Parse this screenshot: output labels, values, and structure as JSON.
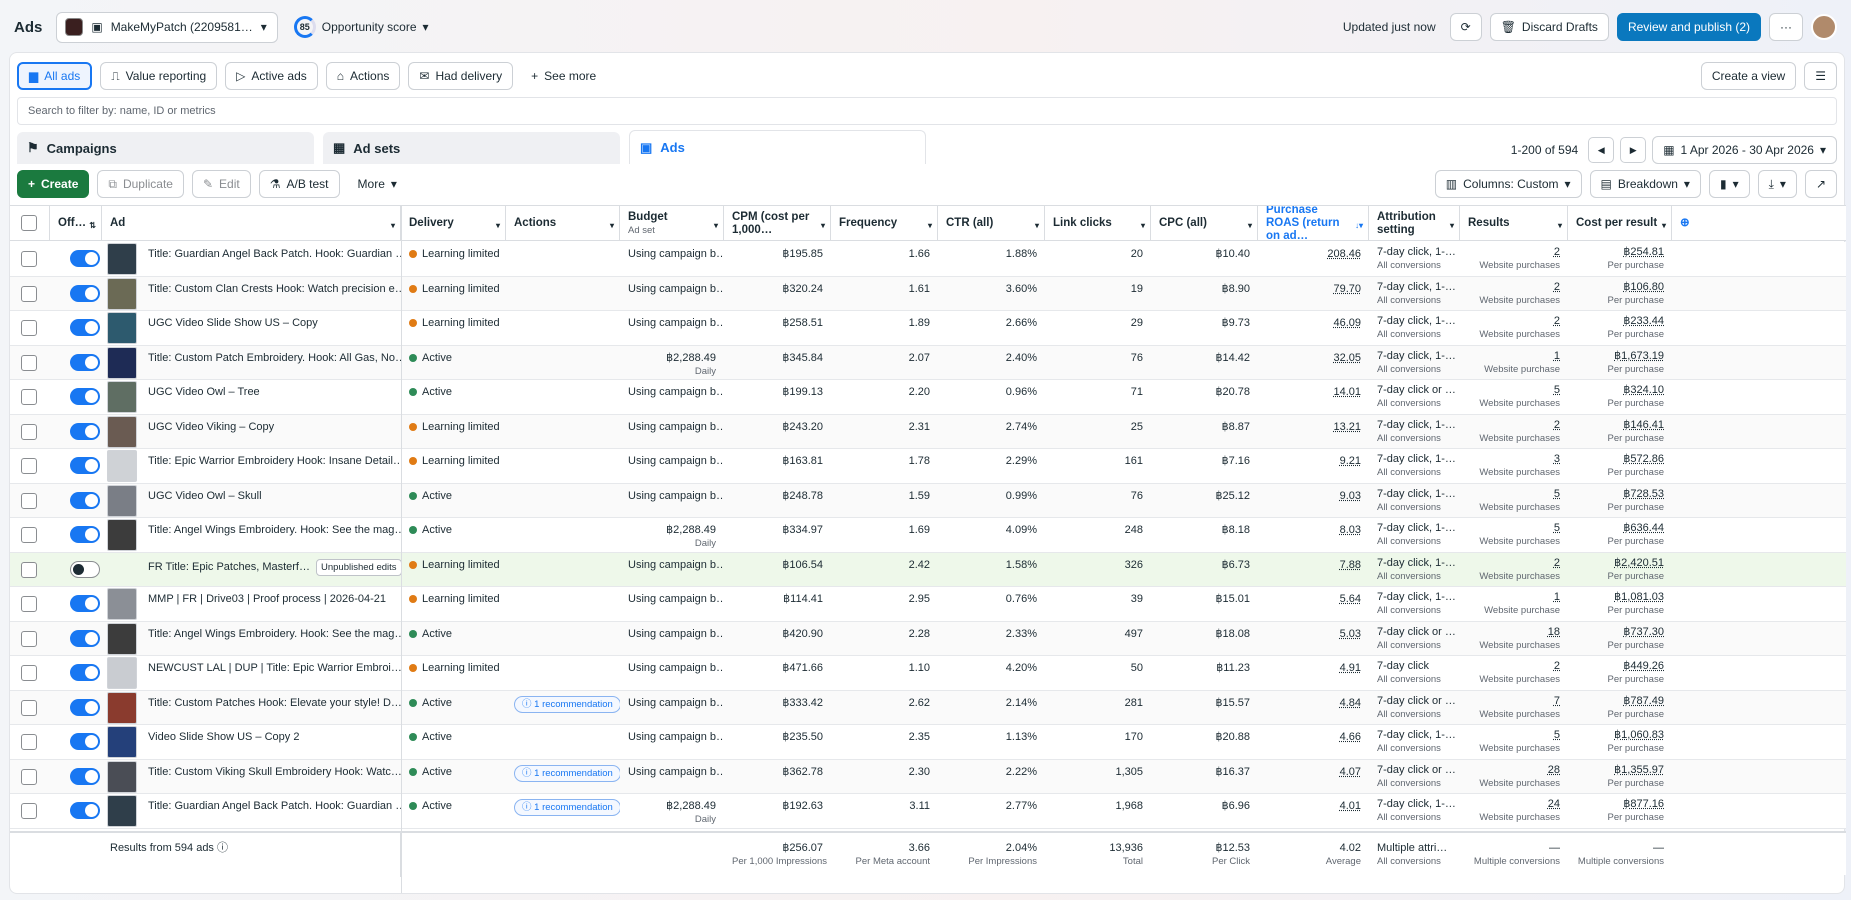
{
  "topbar": {
    "title": "Ads",
    "account": "MakeMyPatch (2209581…",
    "score": "85",
    "opportunity": "Opportunity score",
    "updated": "Updated just now",
    "discard": "Discard Drafts",
    "publish": "Review and publish (2)",
    "more": "···"
  },
  "filters": [
    {
      "label": "All ads",
      "icon": "▆"
    },
    {
      "label": "Value reporting",
      "icon": "⎍"
    },
    {
      "label": "Active ads",
      "icon": "▷"
    },
    {
      "label": "Actions",
      "icon": "⌂"
    },
    {
      "label": "Had delivery",
      "icon": "✉"
    },
    {
      "label": "See more",
      "icon": "+"
    }
  ],
  "create_view": "Create a view",
  "search_placeholder": "Search to filter by: name, ID or metrics",
  "levels": {
    "campaigns": "Campaigns",
    "adsets": "Ad sets",
    "ads": "Ads"
  },
  "pagination": "1-200 of 594",
  "daterange": "1 Apr 2026 - 30 Apr 2026",
  "toolbar": {
    "create": "Create",
    "duplicate": "Duplicate",
    "edit": "Edit",
    "abtest": "A/B test",
    "more": "More",
    "columns": "Columns: Custom",
    "breakdown": "Breakdown"
  },
  "headers": {
    "off": "Off…",
    "ad": "Ad",
    "delivery": "Delivery",
    "actions": "Actions",
    "budget": "Budget",
    "budget_sub": "Ad set",
    "cpm": "CPM (cost per 1,000…",
    "frequency": "Frequency",
    "ctr": "CTR (all)",
    "clicks": "Link clicks",
    "cpc": "CPC (all)",
    "roas": "Purchase ROAS (return on ad…",
    "attribution": "Attribution setting",
    "results": "Results",
    "cpr": "Cost per result"
  },
  "rows": [
    {
      "name": "Title: Guardian Angel Back Patch. Hook: Guardian …",
      "delivery": "Learning limited",
      "status": "learn",
      "rec": "",
      "budget": "Using campaign b…",
      "budget_sub": "",
      "cpm": "฿195.85",
      "freq": "1.66",
      "ctr": "1.88%",
      "clicks": "20",
      "cpc": "฿10.40",
      "roas": "208.46",
      "attr": "7-day click, 1-…",
      "attr_sub": "All conversions",
      "res": "2",
      "res_sub": "Website purchases",
      "cpr": "฿254.81",
      "cpr_sub": "Per purchase",
      "on": true,
      "thumb": "#2f3e4a"
    },
    {
      "name": "Title: Custom Clan Crests Hook: Watch precision e…",
      "delivery": "Learning limited",
      "status": "learn",
      "rec": "",
      "budget": "Using campaign b…",
      "budget_sub": "",
      "cpm": "฿320.24",
      "freq": "1.61",
      "ctr": "3.60%",
      "clicks": "19",
      "cpc": "฿8.90",
      "roas": "79.70",
      "attr": "7-day click, 1-…",
      "attr_sub": "All conversions",
      "res": "2",
      "res_sub": "Website purchases",
      "cpr": "฿106.80",
      "cpr_sub": "Per purchase",
      "on": true,
      "thumb": "#6b6a55"
    },
    {
      "name": "UGC Video Slide Show US – Copy",
      "delivery": "Learning limited",
      "status": "learn",
      "rec": "",
      "budget": "Using campaign b…",
      "budget_sub": "",
      "cpm": "฿258.51",
      "freq": "1.89",
      "ctr": "2.66%",
      "clicks": "29",
      "cpc": "฿9.73",
      "roas": "46.09",
      "attr": "7-day click, 1-…",
      "attr_sub": "All conversions",
      "res": "2",
      "res_sub": "Website purchases",
      "cpr": "฿233.44",
      "cpr_sub": "Per purchase",
      "on": true,
      "thumb": "#2d5a6e"
    },
    {
      "name": "Title: Custom Patch Embroidery. Hook: All Gas, No…",
      "delivery": "Active",
      "status": "act",
      "rec": "",
      "budget": "฿2,288.49",
      "budget_sub": "Daily",
      "cpm": "฿345.84",
      "freq": "2.07",
      "ctr": "2.40%",
      "clicks": "76",
      "cpc": "฿14.42",
      "roas": "32.05",
      "attr": "7-day click, 1-…",
      "attr_sub": "All conversions",
      "res": "1",
      "res_sub": "Website purchase",
      "cpr": "฿1,673.19",
      "cpr_sub": "Per purchase",
      "on": true,
      "thumb": "#1e2b55"
    },
    {
      "name": "UGC Video Owl – Tree",
      "delivery": "Active",
      "status": "act",
      "rec": "",
      "budget": "Using campaign b…",
      "budget_sub": "",
      "cpm": "฿199.13",
      "freq": "2.20",
      "ctr": "0.96%",
      "clicks": "71",
      "cpc": "฿20.78",
      "roas": "14.01",
      "attr": "7-day click or …",
      "attr_sub": "All conversions",
      "res": "5",
      "res_sub": "Website purchases",
      "cpr": "฿324.10",
      "cpr_sub": "Per purchase",
      "on": true,
      "thumb": "#5f6e63"
    },
    {
      "name": "UGC Video Viking – Copy",
      "delivery": "Learning limited",
      "status": "learn",
      "rec": "",
      "budget": "Using campaign b…",
      "budget_sub": "",
      "cpm": "฿243.20",
      "freq": "2.31",
      "ctr": "2.74%",
      "clicks": "25",
      "cpc": "฿8.87",
      "roas": "13.21",
      "attr": "7-day click, 1-…",
      "attr_sub": "All conversions",
      "res": "2",
      "res_sub": "Website purchases",
      "cpr": "฿146.41",
      "cpr_sub": "Per purchase",
      "on": true,
      "thumb": "#6a5b52"
    },
    {
      "name": "Title: Epic Warrior Embroidery Hook: Insane Detail…",
      "delivery": "Learning limited",
      "status": "learn",
      "rec": "",
      "budget": "Using campaign b…",
      "budget_sub": "",
      "cpm": "฿163.81",
      "freq": "1.78",
      "ctr": "2.29%",
      "clicks": "161",
      "cpc": "฿7.16",
      "roas": "9.21",
      "attr": "7-day click, 1-…",
      "attr_sub": "All conversions",
      "res": "3",
      "res_sub": "Website purchases",
      "cpr": "฿572.86",
      "cpr_sub": "Per purchase",
      "on": true,
      "thumb": "#cfd2d6"
    },
    {
      "name": "UGC Video Owl – Skull",
      "delivery": "Active",
      "status": "act",
      "rec": "",
      "budget": "Using campaign b…",
      "budget_sub": "",
      "cpm": "฿248.78",
      "freq": "1.59",
      "ctr": "0.99%",
      "clicks": "76",
      "cpc": "฿25.12",
      "roas": "9.03",
      "attr": "7-day click, 1-…",
      "attr_sub": "All conversions",
      "res": "5",
      "res_sub": "Website purchases",
      "cpr": "฿728.53",
      "cpr_sub": "Per purchase",
      "on": true,
      "thumb": "#7a7e86"
    },
    {
      "name": "Title: Angel Wings Embroidery. Hook: See the mag…",
      "delivery": "Active",
      "status": "act",
      "rec": "",
      "budget": "฿2,288.49",
      "budget_sub": "Daily",
      "cpm": "฿334.97",
      "freq": "1.69",
      "ctr": "4.09%",
      "clicks": "248",
      "cpc": "฿8.18",
      "roas": "8.03",
      "attr": "7-day click, 1-…",
      "attr_sub": "All conversions",
      "res": "5",
      "res_sub": "Website purchases",
      "cpr": "฿636.44",
      "cpr_sub": "Per purchase",
      "on": true,
      "thumb": "#3c3c3c"
    },
    {
      "name": "FR Title: Epic Patches, Masterf…",
      "delivery": "Learning limited",
      "status": "learn",
      "rec": "",
      "badge": "Unpublished edits",
      "budget": "Using campaign b…",
      "budget_sub": "",
      "cpm": "฿106.54",
      "freq": "2.42",
      "ctr": "1.58%",
      "clicks": "326",
      "cpc": "฿6.73",
      "roas": "7.88",
      "attr": "7-day click, 1-…",
      "attr_sub": "All conversions",
      "res": "2",
      "res_sub": "Website purchases",
      "cpr": "฿2,420.51",
      "cpr_sub": "Per purchase",
      "on": false,
      "thumb": ""
    },
    {
      "name": "MMP | FR | Drive03 | Proof process | 2026-04-21",
      "delivery": "Learning limited",
      "status": "learn",
      "rec": "",
      "budget": "Using campaign b…",
      "budget_sub": "",
      "cpm": "฿114.41",
      "freq": "2.95",
      "ctr": "0.76%",
      "clicks": "39",
      "cpc": "฿15.01",
      "roas": "5.64",
      "attr": "7-day click, 1-…",
      "attr_sub": "All conversions",
      "res": "1",
      "res_sub": "Website purchase",
      "cpr": "฿1,081.03",
      "cpr_sub": "Per purchase",
      "on": true,
      "thumb": "#8b8f96"
    },
    {
      "name": "Title: Angel Wings Embroidery. Hook: See the mag…",
      "delivery": "Active",
      "status": "act",
      "rec": "",
      "budget": "Using campaign b…",
      "budget_sub": "",
      "cpm": "฿420.90",
      "freq": "2.28",
      "ctr": "2.33%",
      "clicks": "497",
      "cpc": "฿18.08",
      "roas": "5.03",
      "attr": "7-day click or …",
      "attr_sub": "All conversions",
      "res": "18",
      "res_sub": "Website purchases",
      "cpr": "฿737.30",
      "cpr_sub": "Per purchase",
      "on": true,
      "thumb": "#3c3c3c"
    },
    {
      "name": "NEWCUST LAL | DUP | Title: Epic Warrior Embroi…",
      "delivery": "Learning limited",
      "status": "learn",
      "rec": "",
      "budget": "Using campaign b…",
      "budget_sub": "",
      "cpm": "฿471.66",
      "freq": "1.10",
      "ctr": "4.20%",
      "clicks": "50",
      "cpc": "฿11.23",
      "roas": "4.91",
      "attr": "7-day click",
      "attr_sub": "All conversions",
      "res": "2",
      "res_sub": "Website purchases",
      "cpr": "฿449.26",
      "cpr_sub": "Per purchase",
      "on": true,
      "thumb": "#c9ccd1"
    },
    {
      "name": "Title: Custom Patches Hook: Elevate your style! D…",
      "delivery": "Active",
      "status": "act",
      "rec": "1 recommendation",
      "budget": "Using campaign b…",
      "budget_sub": "",
      "cpm": "฿333.42",
      "freq": "2.62",
      "ctr": "2.14%",
      "clicks": "281",
      "cpc": "฿15.57",
      "roas": "4.84",
      "attr": "7-day click or …",
      "attr_sub": "All conversions",
      "res": "7",
      "res_sub": "Website purchases",
      "cpr": "฿787.49",
      "cpr_sub": "Per purchase",
      "on": true,
      "thumb": "#8a3b2e"
    },
    {
      "name": "Video Slide Show US – Copy 2",
      "delivery": "Active",
      "status": "act",
      "rec": "",
      "budget": "Using campaign b…",
      "budget_sub": "",
      "cpm": "฿235.50",
      "freq": "2.35",
      "ctr": "1.13%",
      "clicks": "170",
      "cpc": "฿20.88",
      "roas": "4.66",
      "attr": "7-day click, 1-…",
      "attr_sub": "All conversions",
      "res": "5",
      "res_sub": "Website purchases",
      "cpr": "฿1,060.83",
      "cpr_sub": "Per purchase",
      "on": true,
      "thumb": "#24407a"
    },
    {
      "name": "Title: Custom Viking Skull Embroidery Hook: Watc…",
      "delivery": "Active",
      "status": "act",
      "rec": "1 recommendation",
      "budget": "Using campaign b…",
      "budget_sub": "",
      "cpm": "฿362.78",
      "freq": "2.30",
      "ctr": "2.22%",
      "clicks": "1,305",
      "cpc": "฿16.37",
      "roas": "4.07",
      "attr": "7-day click or …",
      "attr_sub": "All conversions",
      "res": "28",
      "res_sub": "Website purchases",
      "cpr": "฿1,355.97",
      "cpr_sub": "Per purchase",
      "on": true,
      "thumb": "#4a4d55"
    },
    {
      "name": "Title: Guardian Angel Back Patch. Hook: Guardian …",
      "delivery": "Active",
      "status": "act",
      "rec": "1 recommendation",
      "budget": "฿2,288.49",
      "budget_sub": "Daily",
      "cpm": "฿192.63",
      "freq": "3.11",
      "ctr": "2.77%",
      "clicks": "1,968",
      "cpc": "฿6.96",
      "roas": "4.01",
      "attr": "7-day click, 1-…",
      "attr_sub": "All conversions",
      "res": "24",
      "res_sub": "Website purchases",
      "cpr": "฿877.16",
      "cpr_sub": "Per purchase",
      "on": true,
      "thumb": "#2f3e4a"
    }
  ],
  "footer": {
    "label": "Results from 594 ads",
    "cpm": "฿256.07",
    "cpm_sub": "Per 1,000 Impressions",
    "freq": "3.66",
    "freq_sub": "Per Meta account",
    "ctr": "2.04%",
    "ctr_sub": "Per Impressions",
    "clicks": "13,936",
    "clicks_sub": "Total",
    "cpc": "฿12.53",
    "cpc_sub": "Per Click",
    "roas": "4.02",
    "roas_sub": "Average",
    "attr": "Multiple attri…",
    "attr_sub": "All conversions",
    "res": "—",
    "res_sub": "Multiple conversions",
    "cpr": "—",
    "cpr_sub": "Multiple conversions"
  },
  "colors": {
    "accent": "#1877f2",
    "create": "#1b7a3f",
    "learning": "#e07b14",
    "active": "#2e8b57"
  }
}
